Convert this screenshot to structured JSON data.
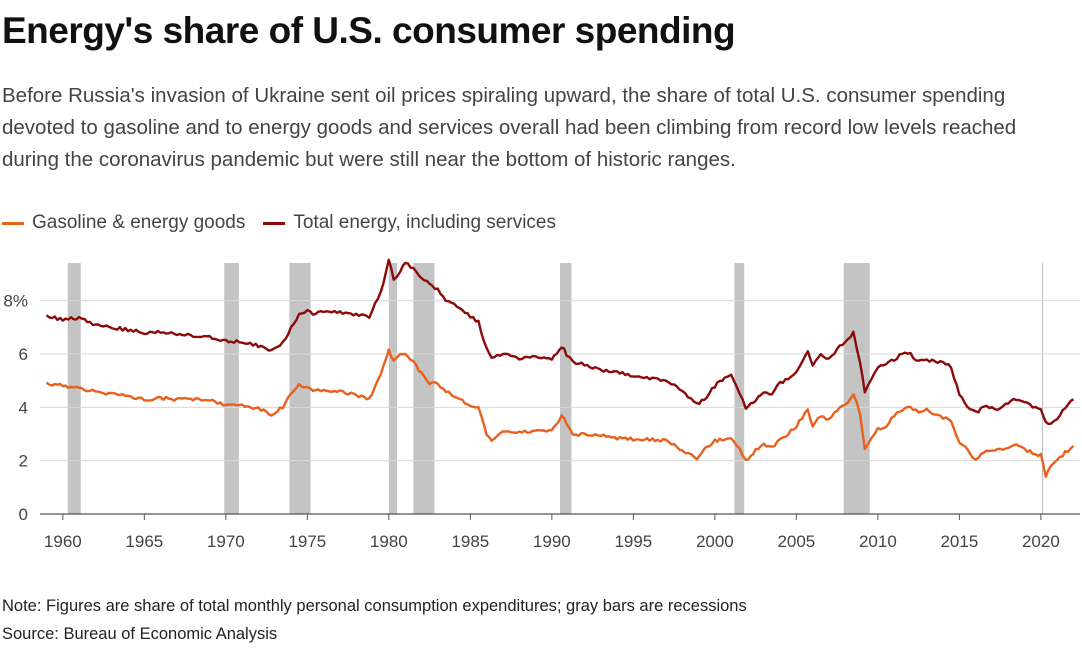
{
  "title": "Energy's share of U.S. consumer spending",
  "subtitle": "Before Russia's invasion of Ukraine sent oil prices spiraling upward, the share of total U.S. consumer spending devoted to gasoline and to energy goods and services overall had been climbing from record low levels reached during the coronavirus pandemic but were still near the bottom of historic ranges.",
  "note": "Note: Figures are share of total monthly personal consumption expenditures; gray bars are recessions",
  "source": "Source: Bureau of Economic Analysis",
  "colors": {
    "gasoline": "#e8601c",
    "total": "#8b0a0a",
    "recession": "#c4c4c4",
    "grid": "#d9d9d9"
  },
  "chart_data": {
    "type": "line",
    "title": "Energy's share of U.S. consumer spending",
    "xlabel": "",
    "ylabel": "",
    "xlim": [
      1958.6,
      2022.4
    ],
    "ylim": [
      0,
      9.6
    ],
    "x_ticks": [
      1960,
      1965,
      1970,
      1975,
      1980,
      1985,
      1990,
      1995,
      2000,
      2005,
      2010,
      2015,
      2020
    ],
    "x_tick_labels": [
      "1960",
      "1965",
      "1970",
      "1975",
      "1980",
      "1985",
      "1990",
      "1995",
      "2000",
      "2005",
      "2010",
      "2015",
      "2020"
    ],
    "y_ticks": [
      0,
      2,
      4,
      6,
      8
    ],
    "y_tick_labels": [
      "0",
      "2",
      "4",
      "6",
      "8%"
    ],
    "recessions": [
      [
        1960.3,
        1961.1
      ],
      [
        1969.9,
        1970.8
      ],
      [
        1973.9,
        1975.2
      ],
      [
        1980.0,
        1980.5
      ],
      [
        1981.5,
        1982.8
      ],
      [
        1990.5,
        1991.2
      ],
      [
        2001.2,
        2001.8
      ],
      [
        2007.9,
        2009.5
      ],
      [
        2020.1,
        2020.3
      ]
    ],
    "series": [
      {
        "name": "Gasoline & energy goods",
        "x": [
          1959.0,
          1960.0,
          1961.0,
          1962.0,
          1963.0,
          1964.0,
          1965.0,
          1966.0,
          1967.0,
          1968.0,
          1969.0,
          1970.0,
          1971.0,
          1972.0,
          1972.8,
          1973.5,
          1974.0,
          1974.5,
          1975.0,
          1975.5,
          1976.0,
          1977.0,
          1978.0,
          1978.8,
          1979.5,
          1980.0,
          1980.3,
          1980.7,
          1981.0,
          1981.5,
          1982.0,
          1982.5,
          1983.0,
          1983.5,
          1984.0,
          1985.0,
          1985.5,
          1986.0,
          1986.3,
          1987.0,
          1988.0,
          1989.0,
          1990.0,
          1990.6,
          1990.9,
          1991.3,
          1992.0,
          1993.0,
          1994.0,
          1995.0,
          1996.0,
          1997.0,
          1998.0,
          1998.9,
          1999.5,
          2000.0,
          2000.6,
          2001.0,
          2001.5,
          2001.9,
          2002.5,
          2003.0,
          2003.5,
          2004.0,
          2004.5,
          2005.0,
          2005.7,
          2006.0,
          2006.5,
          2007.0,
          2007.5,
          2008.0,
          2008.5,
          2008.9,
          2009.2,
          2009.6,
          2010.0,
          2010.5,
          2011.0,
          2011.5,
          2012.0,
          2012.5,
          2013.0,
          2013.5,
          2014.0,
          2014.5,
          2015.0,
          2015.5,
          2016.0,
          2016.5,
          2017.0,
          2017.5,
          2018.0,
          2018.5,
          2019.0,
          2019.5,
          2020.0,
          2020.3,
          2020.6,
          2021.0,
          2021.5,
          2022.0
        ],
        "values": [
          4.9,
          4.8,
          4.7,
          4.6,
          4.5,
          4.4,
          4.3,
          4.35,
          4.3,
          4.3,
          4.25,
          4.1,
          4.05,
          3.95,
          3.75,
          4.0,
          4.5,
          4.85,
          4.7,
          4.6,
          4.65,
          4.6,
          4.45,
          4.3,
          5.2,
          6.2,
          5.7,
          6.0,
          6.0,
          5.7,
          5.3,
          4.9,
          4.9,
          4.6,
          4.4,
          4.1,
          4.0,
          3.0,
          2.8,
          3.1,
          3.05,
          3.1,
          3.1,
          3.7,
          3.4,
          3.0,
          3.0,
          2.95,
          2.85,
          2.8,
          2.8,
          2.75,
          2.4,
          2.1,
          2.5,
          2.75,
          2.8,
          2.8,
          2.5,
          2.0,
          2.4,
          2.6,
          2.5,
          2.8,
          3.0,
          3.3,
          3.9,
          3.3,
          3.7,
          3.5,
          3.9,
          4.1,
          4.5,
          3.8,
          2.4,
          2.8,
          3.2,
          3.3,
          3.7,
          3.9,
          4.0,
          3.8,
          3.9,
          3.7,
          3.6,
          3.5,
          2.7,
          2.4,
          2.0,
          2.3,
          2.4,
          2.4,
          2.5,
          2.6,
          2.4,
          2.3,
          2.2,
          1.4,
          1.8,
          2.0,
          2.3,
          2.55
        ]
      },
      {
        "name": "Total energy, including services",
        "x": [
          1959.0,
          1960.0,
          1961.0,
          1962.0,
          1963.0,
          1964.0,
          1965.0,
          1966.0,
          1967.0,
          1968.0,
          1969.0,
          1970.0,
          1971.0,
          1972.0,
          1972.8,
          1973.5,
          1974.0,
          1974.5,
          1975.0,
          1975.5,
          1976.0,
          1977.0,
          1978.0,
          1978.8,
          1979.5,
          1980.0,
          1980.3,
          1980.7,
          1981.0,
          1981.5,
          1982.0,
          1982.5,
          1983.0,
          1983.5,
          1984.0,
          1985.0,
          1985.5,
          1986.0,
          1986.3,
          1987.0,
          1988.0,
          1989.0,
          1990.0,
          1990.6,
          1990.9,
          1991.3,
          1992.0,
          1993.0,
          1994.0,
          1995.0,
          1996.0,
          1997.0,
          1998.0,
          1998.9,
          1999.5,
          2000.0,
          2000.6,
          2001.0,
          2001.5,
          2001.9,
          2002.5,
          2003.0,
          2003.5,
          2004.0,
          2004.5,
          2005.0,
          2005.7,
          2006.0,
          2006.5,
          2007.0,
          2007.5,
          2008.0,
          2008.5,
          2008.9,
          2009.2,
          2009.6,
          2010.0,
          2010.5,
          2011.0,
          2011.5,
          2012.0,
          2012.5,
          2013.0,
          2013.5,
          2014.0,
          2014.5,
          2015.0,
          2015.5,
          2016.0,
          2016.5,
          2017.0,
          2017.5,
          2018.0,
          2018.5,
          2019.0,
          2019.5,
          2020.0,
          2020.3,
          2020.6,
          2021.0,
          2021.5,
          2022.0
        ],
        "values": [
          7.4,
          7.3,
          7.35,
          7.1,
          7.0,
          6.9,
          6.8,
          6.85,
          6.75,
          6.7,
          6.65,
          6.5,
          6.45,
          6.3,
          6.15,
          6.4,
          7.0,
          7.5,
          7.6,
          7.5,
          7.6,
          7.55,
          7.5,
          7.4,
          8.3,
          9.5,
          8.8,
          9.1,
          9.4,
          9.2,
          8.9,
          8.6,
          8.4,
          8.0,
          7.9,
          7.4,
          7.2,
          6.2,
          5.9,
          6.0,
          5.8,
          5.9,
          5.8,
          6.3,
          6.0,
          5.7,
          5.6,
          5.4,
          5.3,
          5.2,
          5.1,
          5.0,
          4.6,
          4.1,
          4.4,
          4.8,
          5.1,
          5.2,
          4.6,
          3.9,
          4.3,
          4.6,
          4.5,
          4.9,
          5.1,
          5.3,
          6.1,
          5.6,
          6.0,
          5.8,
          6.2,
          6.4,
          6.8,
          5.7,
          4.6,
          5.1,
          5.5,
          5.6,
          5.8,
          6.0,
          6.0,
          5.7,
          5.8,
          5.7,
          5.7,
          5.5,
          4.5,
          4.0,
          3.8,
          4.0,
          4.0,
          3.9,
          4.2,
          4.3,
          4.2,
          4.0,
          3.9,
          3.4,
          3.4,
          3.6,
          4.0,
          4.3
        ]
      }
    ],
    "legend": [
      "Gasoline & energy goods",
      "Total energy, including services"
    ],
    "legend_position": "top-left"
  }
}
